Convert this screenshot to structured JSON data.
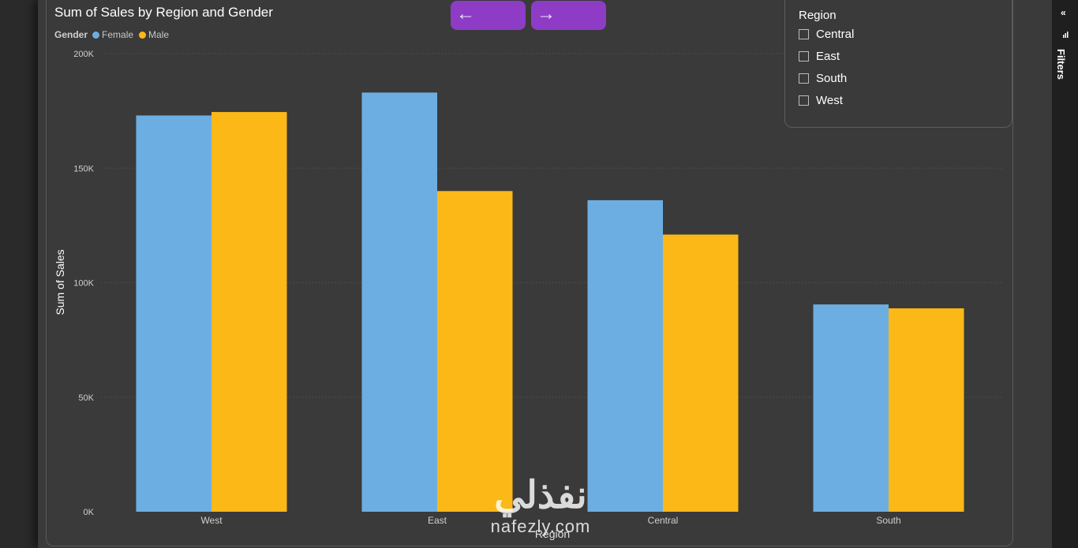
{
  "nav": {
    "back_icon": "arrow-left-icon",
    "forward_icon": "arrow-right-icon",
    "back_glyph": "←",
    "forward_glyph": "→"
  },
  "chart_data": {
    "type": "bar",
    "title": "Sum of Sales by Region and Gender",
    "xlabel": "Region",
    "ylabel": "Sum of Sales",
    "categories": [
      "West",
      "East",
      "Central",
      "South"
    ],
    "series": [
      {
        "name": "Female",
        "color": "#6daee2",
        "values": [
          173000,
          183000,
          136000,
          90500
        ]
      },
      {
        "name": "Male",
        "color": "#fcb817",
        "values": [
          174500,
          140000,
          121000,
          88800
        ]
      }
    ],
    "ylim": [
      0,
      200000
    ],
    "yticks": [
      0,
      50000,
      100000,
      150000,
      200000
    ],
    "ytick_labels": [
      "0K",
      "50K",
      "100K",
      "150K",
      "200K"
    ],
    "legend": {
      "title": "Gender",
      "placement": "top-left"
    },
    "grid": true
  },
  "slicer": {
    "title": "Region",
    "items": [
      {
        "label": "Central",
        "checked": false
      },
      {
        "label": "East",
        "checked": false
      },
      {
        "label": "South",
        "checked": false
      },
      {
        "label": "West",
        "checked": false
      }
    ]
  },
  "filters_pane": {
    "label": "Filters",
    "collapse_icon": "chevron-double-left-icon",
    "collapse_glyph": "«"
  },
  "watermark": {
    "arabic": "نفذلي",
    "text": "nafezly.com"
  },
  "colors": {
    "background": "#3a3a3a",
    "accent": "#8e3cc5",
    "female": "#6daee2",
    "male": "#fcb817"
  }
}
